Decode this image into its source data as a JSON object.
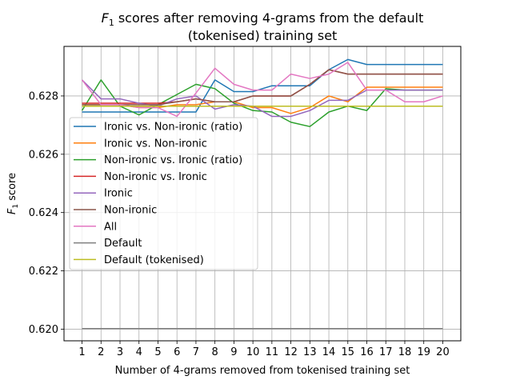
{
  "chart_data": {
    "type": "line",
    "title_main": "scores after removing 4-grams from the default",
    "title_line2": "(tokenised) training set",
    "title_symbol": "F",
    "title_subscript": "1",
    "xlabel": "Number of 4-grams removed from tokenised training set",
    "ylabel_symbol": "F",
    "ylabel_subscript": "1",
    "ylabel_rest": "score",
    "x": [
      1,
      2,
      3,
      4,
      5,
      6,
      7,
      8,
      9,
      10,
      11,
      12,
      13,
      14,
      15,
      16,
      17,
      18,
      19,
      20
    ],
    "xlim": [
      0.05,
      20.95
    ],
    "ylim": [
      0.6196,
      0.6297
    ],
    "yticks": [
      0.62,
      0.622,
      0.624,
      0.626,
      0.628
    ],
    "ytick_labels": [
      "0.620",
      "0.622",
      "0.624",
      "0.626",
      "0.628"
    ],
    "grid": true,
    "legend_position": "center-left",
    "series": [
      {
        "name": "Ironic vs. Non-ironic (ratio)",
        "color": "#1f77b4",
        "values": [
          0.62745,
          0.62745,
          0.62745,
          0.62745,
          0.62745,
          0.62745,
          0.62745,
          0.62855,
          0.62815,
          0.62815,
          0.62835,
          0.62835,
          0.62835,
          0.6289,
          0.62925,
          0.62908,
          0.62908,
          0.62908,
          0.62908,
          0.62908
        ]
      },
      {
        "name": "Ironic vs. Non-ironic",
        "color": "#ff7f0e",
        "values": [
          0.6277,
          0.6277,
          0.6277,
          0.6276,
          0.6276,
          0.6277,
          0.6277,
          0.6278,
          0.6278,
          0.6276,
          0.6276,
          0.6274,
          0.6276,
          0.628,
          0.6278,
          0.6283,
          0.6283,
          0.6283,
          0.6283,
          0.6283
        ]
      },
      {
        "name": "Non-ironic vs. Ironic (ratio)",
        "color": "#2ca02c",
        "values": [
          0.6275,
          0.62855,
          0.62765,
          0.62735,
          0.6277,
          0.62805,
          0.6284,
          0.62825,
          0.62775,
          0.6275,
          0.62745,
          0.6271,
          0.62695,
          0.62745,
          0.62765,
          0.6275,
          0.62825,
          0.6282,
          0.6282,
          0.6282
        ]
      },
      {
        "name": "Non-ironic vs. Ironic",
        "color": "#d62728",
        "values": [
          0.62775,
          0.62775,
          0.62775,
          0.62775,
          0.62775,
          0.6278,
          0.6279,
          0.6278,
          0.6278,
          0.628,
          0.628,
          0.628,
          0.6284,
          0.6289,
          0.62875,
          0.62875,
          0.62875,
          0.62875,
          0.62875,
          0.62875
        ]
      },
      {
        "name": "Ironic",
        "color": "#9467bd",
        "values": [
          0.62855,
          0.6279,
          0.6279,
          0.62775,
          0.62765,
          0.6279,
          0.628,
          0.62755,
          0.6277,
          0.62765,
          0.6273,
          0.6273,
          0.6275,
          0.62785,
          0.62785,
          0.6282,
          0.6282,
          0.6282,
          0.6282,
          0.6282
        ]
      },
      {
        "name": "Non-ironic",
        "color": "#8c564b",
        "values": [
          0.6277,
          0.6277,
          0.6277,
          0.6277,
          0.6277,
          0.6278,
          0.6279,
          0.6278,
          0.6278,
          0.628,
          0.628,
          0.628,
          0.6284,
          0.6289,
          0.62875,
          0.62875,
          0.62875,
          0.62875,
          0.62875,
          0.62875
        ]
      },
      {
        "name": "All",
        "color": "#e377c2",
        "values": [
          0.62855,
          0.6277,
          0.6277,
          0.6276,
          0.6276,
          0.6273,
          0.6281,
          0.62895,
          0.6284,
          0.6282,
          0.6282,
          0.62875,
          0.6286,
          0.62875,
          0.62915,
          0.6282,
          0.6282,
          0.6278,
          0.6278,
          0.628
        ]
      },
      {
        "name": "Default",
        "color": "#7f7f7f",
        "values": [
          0.62002,
          0.62002,
          0.62002,
          0.62002,
          0.62002,
          0.62002,
          0.62002,
          0.62002,
          0.62002,
          0.62002,
          0.62002,
          0.62002,
          0.62002,
          0.62002,
          0.62002,
          0.62002,
          0.62002,
          0.62002,
          0.62002,
          0.62002
        ]
      },
      {
        "name": "Default (tokenised)",
        "color": "#bcbd22",
        "values": [
          0.62765,
          0.62765,
          0.62765,
          0.62765,
          0.62765,
          0.62765,
          0.62765,
          0.62765,
          0.62765,
          0.62765,
          0.62765,
          0.62765,
          0.62765,
          0.62765,
          0.62765,
          0.62765,
          0.62765,
          0.62765,
          0.62765,
          0.62765
        ]
      }
    ]
  }
}
